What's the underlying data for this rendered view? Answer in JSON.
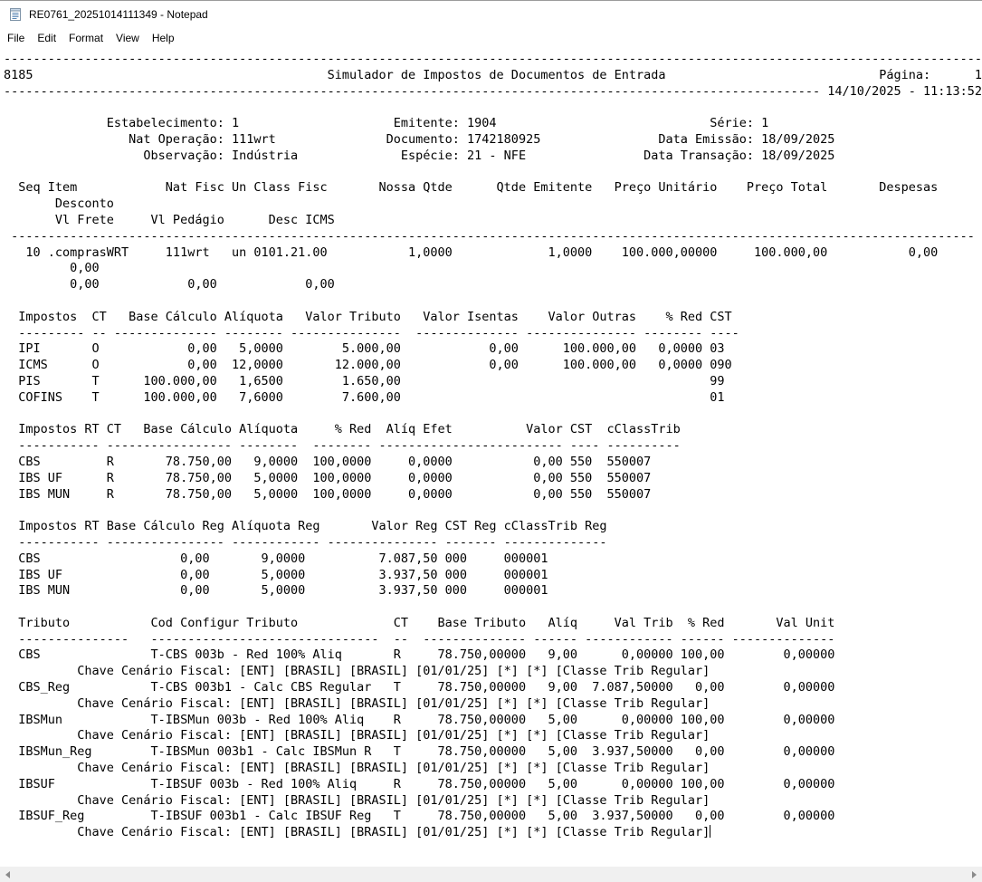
{
  "window": {
    "title": "RE0761_20251014111349 - Notepad",
    "icon": "notepad-icon"
  },
  "menu": {
    "items": [
      "File",
      "Edit",
      "Format",
      "View",
      "Help"
    ]
  },
  "editor": {
    "caret_line": 48,
    "lines": [
      [
        [
          0,
          "-",
          133
        ]
      ],
      [
        [
          0,
          "8185"
        ],
        [
          44,
          "Simulador de Impostos de Documentos de Entrada"
        ],
        [
          119,
          "Página:"
        ],
        [
          132,
          "1"
        ]
      ],
      [
        [
          0,
          "-",
          111
        ],
        [
          111,
          " 14/10/2025 - 11:13:52"
        ]
      ],
      [],
      [
        [
          14,
          "Estabelecimento: 1"
        ],
        [
          53,
          "Emitente: 1904"
        ],
        [
          96,
          "Série: 1"
        ]
      ],
      [
        [
          17,
          "Nat Operação: 111wrt"
        ],
        [
          52,
          "Documento: 1742180925"
        ],
        [
          89,
          "Data Emissão: 18/09/2025"
        ]
      ],
      [
        [
          19,
          "Observação: Indústria"
        ],
        [
          54,
          "Espécie: 21 - NFE"
        ],
        [
          87,
          "Data Transação: 18/09/2025"
        ]
      ],
      [],
      [
        [
          2,
          "Seq Item"
        ],
        [
          22,
          "Nat Fisc Un Class Fisc"
        ],
        [
          51,
          "Nossa Qtde"
        ],
        [
          67,
          "Qtde Emitente"
        ],
        [
          83,
          "Preço Unitário"
        ],
        [
          101,
          "Preço Total"
        ],
        [
          119,
          "Despesas"
        ]
      ],
      [
        [
          7,
          "Desconto"
        ]
      ],
      [
        [
          7,
          "Vl Frete"
        ],
        [
          20,
          "Vl Pedágio"
        ],
        [
          36,
          "Desc ICMS"
        ]
      ],
      [
        [
          1,
          "-",
          131
        ]
      ],
      [
        [
          3,
          "10"
        ],
        [
          6,
          ".comprasWRT"
        ],
        [
          22,
          "111wrt"
        ],
        [
          31,
          "un"
        ],
        [
          34,
          "0101.21.00"
        ],
        [
          55,
          "1,0000"
        ],
        [
          74,
          "1,0000"
        ],
        [
          84,
          "100.000,00000"
        ],
        [
          102,
          "100.000,00"
        ],
        [
          123,
          "0,00"
        ]
      ],
      [
        [
          9,
          "0,00"
        ]
      ],
      [
        [
          9,
          "0,00"
        ],
        [
          25,
          "0,00"
        ],
        [
          41,
          "0,00"
        ]
      ],
      [],
      [
        [
          2,
          "Impostos"
        ],
        [
          12,
          "CT"
        ],
        [
          17,
          "Base Cálculo"
        ],
        [
          30,
          "Alíquota"
        ],
        [
          41,
          "Valor Tributo"
        ],
        [
          57,
          "Valor Isentas"
        ],
        [
          74,
          "Valor Outras"
        ],
        [
          90,
          "% Red"
        ],
        [
          96,
          "CST"
        ]
      ],
      [
        [
          2,
          "-",
          9
        ],
        [
          12,
          "-",
          2
        ],
        [
          15,
          "-",
          14
        ],
        [
          30,
          "-",
          8
        ],
        [
          39,
          "-",
          15
        ],
        [
          56,
          "-",
          14
        ],
        [
          71,
          "-",
          15
        ],
        [
          87,
          "-",
          8
        ],
        [
          96,
          "-",
          4
        ]
      ],
      [
        [
          2,
          "IPI"
        ],
        [
          12,
          "O"
        ],
        [
          25,
          "0,00"
        ],
        [
          32,
          "5,0000"
        ],
        [
          46,
          "5.000,00"
        ],
        [
          66,
          "0,00"
        ],
        [
          76,
          "100.000,00"
        ],
        [
          89,
          "0,0000"
        ],
        [
          96,
          "03"
        ]
      ],
      [
        [
          2,
          "ICMS"
        ],
        [
          12,
          "O"
        ],
        [
          25,
          "0,00"
        ],
        [
          31,
          "12,0000"
        ],
        [
          45,
          "12.000,00"
        ],
        [
          66,
          "0,00"
        ],
        [
          76,
          "100.000,00"
        ],
        [
          89,
          "0,0000"
        ],
        [
          96,
          "090"
        ]
      ],
      [
        [
          2,
          "PIS"
        ],
        [
          12,
          "T"
        ],
        [
          19,
          "100.000,00"
        ],
        [
          32,
          "1,6500"
        ],
        [
          46,
          "1.650,00"
        ],
        [
          96,
          "99"
        ]
      ],
      [
        [
          2,
          "COFINS"
        ],
        [
          12,
          "T"
        ],
        [
          19,
          "100.000,00"
        ],
        [
          32,
          "7,6000"
        ],
        [
          46,
          "7.600,00"
        ],
        [
          96,
          "01"
        ]
      ],
      [],
      [
        [
          2,
          "Impostos RT"
        ],
        [
          14,
          "CT"
        ],
        [
          19,
          "Base Cálculo"
        ],
        [
          32,
          "Alíquota"
        ],
        [
          45,
          "% Red"
        ],
        [
          52,
          "Alíq Efet"
        ],
        [
          71,
          "Valor"
        ],
        [
          77,
          "CST"
        ],
        [
          82,
          "cClassTrib"
        ]
      ],
      [
        [
          2,
          "-",
          11
        ],
        [
          14,
          "-",
          2
        ],
        [
          16,
          "-",
          15
        ],
        [
          32,
          "-",
          8
        ],
        [
          42,
          "-",
          8
        ],
        [
          51,
          "-",
          10
        ],
        [
          61,
          "-",
          15
        ],
        [
          77,
          "-",
          4
        ],
        [
          82,
          "-",
          10
        ]
      ],
      [
        [
          2,
          "CBS"
        ],
        [
          14,
          "R"
        ],
        [
          22,
          "78.750,00"
        ],
        [
          34,
          "9,0000"
        ],
        [
          42,
          "100,0000"
        ],
        [
          55,
          "0,0000"
        ],
        [
          72,
          "0,00"
        ],
        [
          77,
          "550"
        ],
        [
          82,
          "550007"
        ]
      ],
      [
        [
          2,
          "IBS UF"
        ],
        [
          14,
          "R"
        ],
        [
          22,
          "78.750,00"
        ],
        [
          34,
          "5,0000"
        ],
        [
          42,
          "100,0000"
        ],
        [
          55,
          "0,0000"
        ],
        [
          72,
          "0,00"
        ],
        [
          77,
          "550"
        ],
        [
          82,
          "550007"
        ]
      ],
      [
        [
          2,
          "IBS MUN"
        ],
        [
          14,
          "R"
        ],
        [
          22,
          "78.750,00"
        ],
        [
          34,
          "5,0000"
        ],
        [
          42,
          "100,0000"
        ],
        [
          55,
          "0,0000"
        ],
        [
          72,
          "0,00"
        ],
        [
          77,
          "550"
        ],
        [
          82,
          "550007"
        ]
      ],
      [],
      [
        [
          2,
          "Impostos RT"
        ],
        [
          14,
          "Base Cálculo Reg"
        ],
        [
          31,
          "Alíquota Reg"
        ],
        [
          50,
          "Valor Reg"
        ],
        [
          60,
          "CST Reg"
        ],
        [
          68,
          "cClassTrib Reg"
        ]
      ],
      [
        [
          2,
          "-",
          11
        ],
        [
          14,
          "-",
          16
        ],
        [
          31,
          "-",
          12
        ],
        [
          44,
          "-",
          15
        ],
        [
          60,
          "-",
          7
        ],
        [
          68,
          "-",
          14
        ]
      ],
      [
        [
          2,
          "CBS"
        ],
        [
          24,
          "0,00"
        ],
        [
          35,
          "9,0000"
        ],
        [
          51,
          "7.087,50"
        ],
        [
          60,
          "000"
        ],
        [
          68,
          "000001"
        ]
      ],
      [
        [
          2,
          "IBS UF"
        ],
        [
          24,
          "0,00"
        ],
        [
          35,
          "5,0000"
        ],
        [
          51,
          "3.937,50"
        ],
        [
          60,
          "000"
        ],
        [
          68,
          "000001"
        ]
      ],
      [
        [
          2,
          "IBS MUN"
        ],
        [
          24,
          "0,00"
        ],
        [
          35,
          "5,0000"
        ],
        [
          51,
          "3.937,50"
        ],
        [
          60,
          "000"
        ],
        [
          68,
          "000001"
        ]
      ],
      [],
      [
        [
          2,
          "Tributo"
        ],
        [
          20,
          "Cod Configur Tributo"
        ],
        [
          53,
          "CT"
        ],
        [
          59,
          "Base Tributo"
        ],
        [
          74,
          "Alíq"
        ],
        [
          83,
          "Val Trib"
        ],
        [
          93,
          "% Red"
        ],
        [
          105,
          "Val Unit"
        ]
      ],
      [
        [
          2,
          "-",
          15
        ],
        [
          20,
          "-",
          31
        ],
        [
          53,
          "-",
          2
        ],
        [
          57,
          "-",
          14
        ],
        [
          72,
          "-",
          6
        ],
        [
          79,
          "-",
          12
        ],
        [
          92,
          "-",
          6
        ],
        [
          99,
          "-",
          14
        ]
      ],
      [
        [
          2,
          "CBS"
        ],
        [
          20,
          "T-CBS 003b - Red 100% Aliq"
        ],
        [
          53,
          "R"
        ],
        [
          59,
          "78.750,00000"
        ],
        [
          74,
          "9,00"
        ],
        [
          84,
          "0,00000"
        ],
        [
          92,
          "100,00"
        ],
        [
          106,
          "0,00000"
        ]
      ],
      [
        [
          10,
          "Chave Cenário Fiscal: [ENT] [BRASIL] [BRASIL] [01/01/25] [*] [*] [Classe Trib Regular]"
        ]
      ],
      [
        [
          2,
          "CBS_Reg"
        ],
        [
          20,
          "T-CBS 003b1 - Calc CBS Regular"
        ],
        [
          53,
          "T"
        ],
        [
          59,
          "78.750,00000"
        ],
        [
          74,
          "9,00"
        ],
        [
          80,
          "7.087,50000"
        ],
        [
          94,
          "0,00"
        ],
        [
          106,
          "0,00000"
        ]
      ],
      [
        [
          10,
          "Chave Cenário Fiscal: [ENT] [BRASIL] [BRASIL] [01/01/25] [*] [*] [Classe Trib Regular]"
        ]
      ],
      [
        [
          2,
          "IBSMun"
        ],
        [
          20,
          "T-IBSMun 003b - Red 100% Aliq"
        ],
        [
          53,
          "R"
        ],
        [
          59,
          "78.750,00000"
        ],
        [
          74,
          "5,00"
        ],
        [
          84,
          "0,00000"
        ],
        [
          92,
          "100,00"
        ],
        [
          106,
          "0,00000"
        ]
      ],
      [
        [
          10,
          "Chave Cenário Fiscal: [ENT] [BRASIL] [BRASIL] [01/01/25] [*] [*] [Classe Trib Regular]"
        ]
      ],
      [
        [
          2,
          "IBSMun_Reg"
        ],
        [
          20,
          "T-IBSMun 003b1 - Calc IBSMun R"
        ],
        [
          53,
          "T"
        ],
        [
          59,
          "78.750,00000"
        ],
        [
          74,
          "5,00"
        ],
        [
          80,
          "3.937,50000"
        ],
        [
          94,
          "0,00"
        ],
        [
          106,
          "0,00000"
        ]
      ],
      [
        [
          10,
          "Chave Cenário Fiscal: [ENT] [BRASIL] [BRASIL] [01/01/25] [*] [*] [Classe Trib Regular]"
        ]
      ],
      [
        [
          2,
          "IBSUF"
        ],
        [
          20,
          "T-IBSUF 003b - Red 100% Aliq"
        ],
        [
          53,
          "R"
        ],
        [
          59,
          "78.750,00000"
        ],
        [
          74,
          "5,00"
        ],
        [
          84,
          "0,00000"
        ],
        [
          92,
          "100,00"
        ],
        [
          106,
          "0,00000"
        ]
      ],
      [
        [
          10,
          "Chave Cenário Fiscal: [ENT] [BRASIL] [BRASIL] [01/01/25] [*] [*] [Classe Trib Regular]"
        ]
      ],
      [
        [
          2,
          "IBSUF_Reg"
        ],
        [
          20,
          "T-IBSUF 003b1 - Calc IBSUF Reg"
        ],
        [
          53,
          "T"
        ],
        [
          59,
          "78.750,00000"
        ],
        [
          74,
          "5,00"
        ],
        [
          80,
          "3.937,50000"
        ],
        [
          94,
          "0,00"
        ],
        [
          106,
          "0,00000"
        ]
      ],
      [
        [
          10,
          "Chave Cenário Fiscal: [ENT] [BRASIL] [BRASIL] [01/01/25] [*] [*] [Classe Trib Regular]"
        ]
      ]
    ]
  },
  "scrollbar": {
    "orientation": "horizontal",
    "left_icon": "triangle-left",
    "right_icon": "triangle-right"
  }
}
